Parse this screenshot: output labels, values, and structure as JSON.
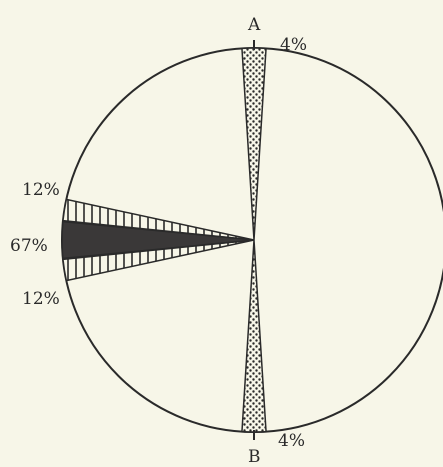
{
  "chart_data": {
    "type": "pie",
    "slices": [
      {
        "label": "A",
        "value": 4,
        "value_label": "4%",
        "style": "stipple"
      },
      {
        "label": "B",
        "value": 4,
        "value_label": "4%",
        "style": "stipple"
      },
      {
        "label": "",
        "value": 12,
        "value_label": "12%",
        "style": "vertical-hatch"
      },
      {
        "label": "",
        "value": 67,
        "value_label": "67%",
        "style": "solid"
      },
      {
        "label": "",
        "value": 12,
        "value_label": "12%",
        "style": "vertical-hatch"
      }
    ],
    "colors": {
      "background": "#f7f6e8",
      "ink": "#2a2a2a",
      "solid": "#3a3838"
    }
  }
}
